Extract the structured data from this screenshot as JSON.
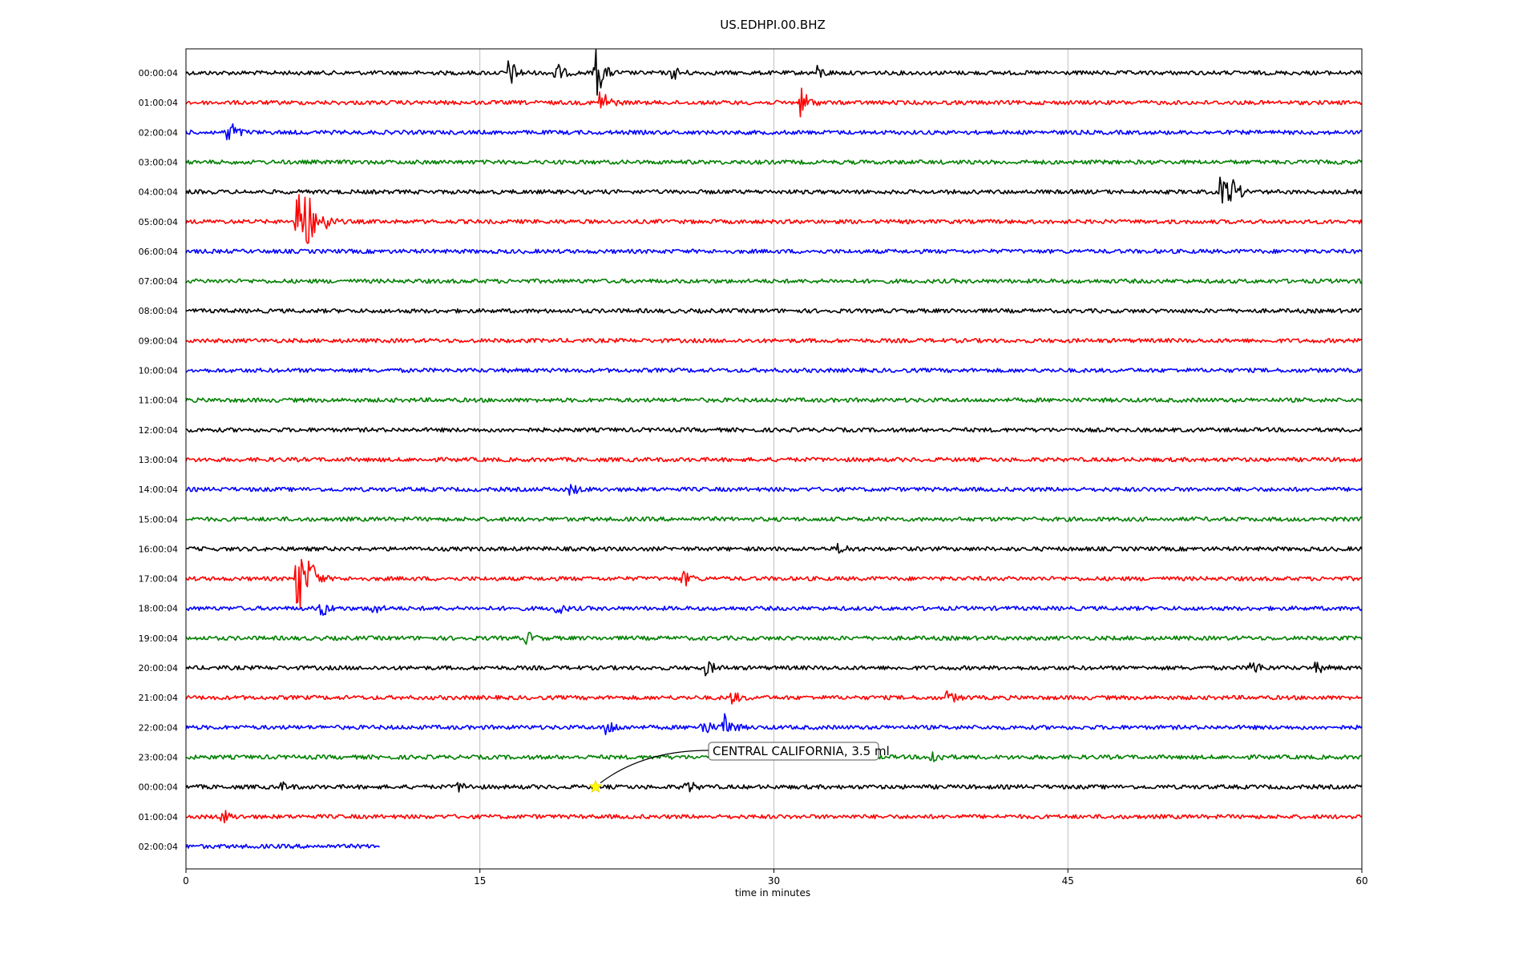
{
  "chart_data": {
    "type": "line",
    "title": "US.EDHPI.00.BHZ",
    "xlabel": "time in minutes",
    "ylabel": "",
    "xlim": [
      0,
      60
    ],
    "xticks": [
      0,
      15,
      30,
      45,
      60
    ],
    "grid": "vertical",
    "colors": [
      "#000000",
      "#ff0000",
      "#0000ff",
      "#008000"
    ],
    "row_labels": [
      "00:00:04",
      "01:00:04",
      "02:00:04",
      "03:00:04",
      "04:00:04",
      "05:00:04",
      "06:00:04",
      "07:00:04",
      "08:00:04",
      "09:00:04",
      "10:00:04",
      "11:00:04",
      "12:00:04",
      "13:00:04",
      "14:00:04",
      "15:00:04",
      "16:00:04",
      "17:00:04",
      "18:00:04",
      "19:00:04",
      "20:00:04",
      "21:00:04",
      "22:00:04",
      "23:00:04",
      "00:00:04",
      "01:00:04",
      "02:00:04"
    ],
    "last_row_end_minutes": 9.9,
    "events": [
      {
        "row": 0,
        "minute": 16.6,
        "amp": 1.2
      },
      {
        "row": 0,
        "minute": 19.0,
        "amp": 0.8
      },
      {
        "row": 0,
        "minute": 21.0,
        "amp": 2.5
      },
      {
        "row": 0,
        "minute": 25.0,
        "amp": 0.5
      },
      {
        "row": 0,
        "minute": 32.3,
        "amp": 0.6
      },
      {
        "row": 1,
        "minute": 21.3,
        "amp": 1.2
      },
      {
        "row": 1,
        "minute": 31.5,
        "amp": 1.3
      },
      {
        "row": 2,
        "minute": 2.3,
        "amp": 1.2
      },
      {
        "row": 4,
        "minute": 53.0,
        "amp": 1.4
      },
      {
        "row": 4,
        "minute": 53.5,
        "amp": 1.0
      },
      {
        "row": 5,
        "minute": 5.8,
        "amp": 3.5
      },
      {
        "row": 5,
        "minute": 6.2,
        "amp": 2.8
      },
      {
        "row": 5,
        "minute": 7.2,
        "amp": 0.7
      },
      {
        "row": 14,
        "minute": 19.8,
        "amp": 0.4
      },
      {
        "row": 16,
        "minute": 33.5,
        "amp": 0.4
      },
      {
        "row": 17,
        "minute": 5.8,
        "amp": 3.5
      },
      {
        "row": 17,
        "minute": 6.5,
        "amp": 1.2
      },
      {
        "row": 17,
        "minute": 25.5,
        "amp": 0.6
      },
      {
        "row": 18,
        "minute": 7.0,
        "amp": 0.7
      },
      {
        "row": 18,
        "minute": 9.6,
        "amp": 0.5
      },
      {
        "row": 18,
        "minute": 19.0,
        "amp": 0.5
      },
      {
        "row": 19,
        "minute": 17.5,
        "amp": 0.5
      },
      {
        "row": 20,
        "minute": 26.7,
        "amp": 0.6
      },
      {
        "row": 20,
        "minute": 54.5,
        "amp": 0.7
      },
      {
        "row": 20,
        "minute": 57.8,
        "amp": 0.4
      },
      {
        "row": 21,
        "minute": 28.0,
        "amp": 0.5
      },
      {
        "row": 21,
        "minute": 39.0,
        "amp": 0.5
      },
      {
        "row": 22,
        "minute": 21.6,
        "amp": 0.8
      },
      {
        "row": 22,
        "minute": 26.5,
        "amp": 0.7
      },
      {
        "row": 22,
        "minute": 27.6,
        "amp": 1.2
      },
      {
        "row": 23,
        "minute": 38.2,
        "amp": 0.6
      },
      {
        "row": 24,
        "minute": 5.0,
        "amp": 0.3
      },
      {
        "row": 24,
        "minute": 14.0,
        "amp": 0.4
      },
      {
        "row": 24,
        "minute": 25.7,
        "amp": 0.5
      },
      {
        "row": 25,
        "minute": 2.0,
        "amp": 0.5
      }
    ],
    "annotation": {
      "text": "CENTRAL CALIFORNIA, 3.5 ml",
      "row": 24,
      "minute": 20.9,
      "marker": "star",
      "marker_color": "#ffff00"
    }
  }
}
